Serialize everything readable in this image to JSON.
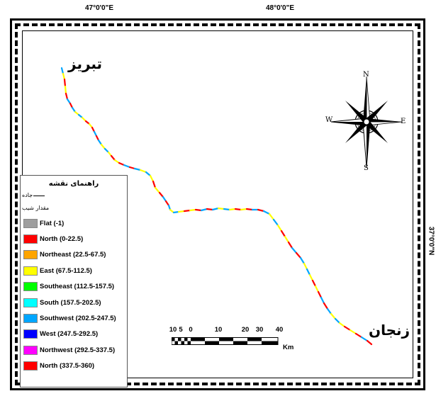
{
  "coordinates": {
    "top_left": "47°0'0\"E",
    "top_right": "48°0'0\"E",
    "right": "37°0'0\"N"
  },
  "cities": {
    "start": "تبریز",
    "end": "زنجان"
  },
  "compass": {
    "n": "N",
    "s": "S",
    "e": "E",
    "w": "W"
  },
  "legend": {
    "title": "راهنمای نقشه",
    "road_label": "جاده",
    "slope_label": "مقدار شیب",
    "items": [
      {
        "label": "Flat (-1)",
        "color": "#9e9e9e"
      },
      {
        "label": "North (0-22.5)",
        "color": "#ff0000"
      },
      {
        "label": "Northeast (22.5-67.5)",
        "color": "#ffa500"
      },
      {
        "label": "East (67.5-112.5)",
        "color": "#ffff00"
      },
      {
        "label": "Southeast (112.5-157.5)",
        "color": "#00ff00"
      },
      {
        "label": "South (157.5-202.5)",
        "color": "#00ffff"
      },
      {
        "label": "Southwest (202.5-247.5)",
        "color": "#00a6ff"
      },
      {
        "label": "West (247.5-292.5)",
        "color": "#0000ff"
      },
      {
        "label": "Northwest (292.5-337.5)",
        "color": "#ff00ff"
      },
      {
        "label": "North (337.5-360)",
        "color": "#ff0000"
      }
    ]
  },
  "scale": {
    "labels": [
      "10",
      "5",
      "0",
      "10",
      "20",
      "30",
      "40"
    ],
    "unit": "Km"
  }
}
